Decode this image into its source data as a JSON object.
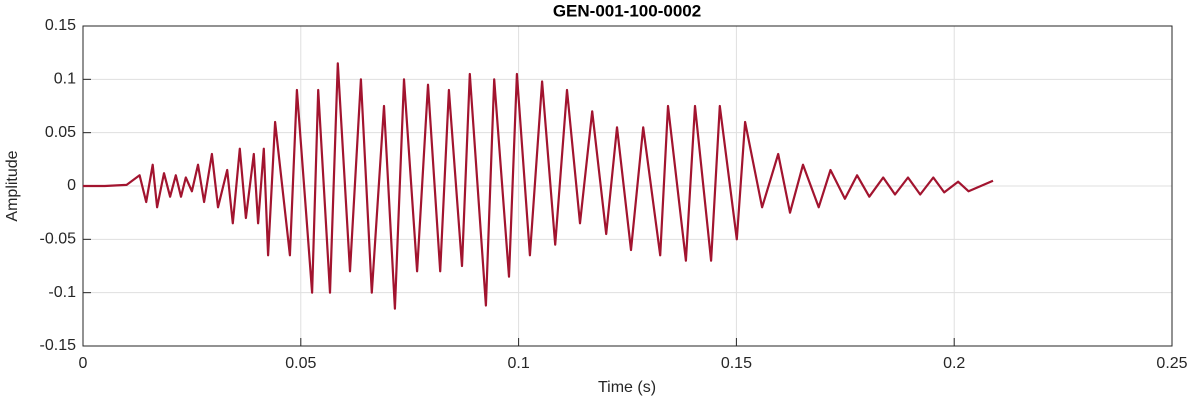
{
  "chart_data": {
    "type": "line",
    "title": "GEN-001-100-0002",
    "x_label": "Time (s)",
    "y_label": "Amplitude",
    "xlim": [
      0,
      0.25
    ],
    "xticks": [
      0,
      0.05,
      0.1,
      0.15,
      0.2,
      0.25
    ],
    "ylim": [
      -0.15,
      0.15
    ],
    "yticks": [
      -0.15,
      -0.1,
      -0.05,
      0,
      0.05,
      0.1,
      0.15
    ],
    "grid": true,
    "series": [
      {
        "color": "#a2142f",
        "x": [
          0,
          0.005,
          0.01,
          0.013,
          0.0145,
          0.016,
          0.017,
          0.0186,
          0.02,
          0.0213,
          0.0225,
          0.0236,
          0.025,
          0.0264,
          0.0278,
          0.0296,
          0.031,
          0.0331,
          0.0344,
          0.036,
          0.0374,
          0.0392,
          0.0402,
          0.0415,
          0.0425,
          0.0441,
          0.0475,
          0.0491,
          0.0526,
          0.054,
          0.0567,
          0.0585,
          0.0613,
          0.0638,
          0.0663,
          0.0691,
          0.0716,
          0.0737,
          0.0767,
          0.0792,
          0.082,
          0.084,
          0.087,
          0.0888,
          0.0925,
          0.0944,
          0.0978,
          0.0996,
          0.1026,
          0.1054,
          0.1084,
          0.1111,
          0.1141,
          0.1169,
          0.1201,
          0.1226,
          0.1258,
          0.1286,
          0.1325,
          0.1343,
          0.1384,
          0.1405,
          0.1442,
          0.1462,
          0.1501,
          0.152,
          0.1559,
          0.1596,
          0.1623,
          0.1653,
          0.1689,
          0.1716,
          0.1749,
          0.1777,
          0.1805,
          0.1837,
          0.1864,
          0.1894,
          0.1922,
          0.1952,
          0.1977,
          0.2009,
          0.2033,
          0.2089
        ],
        "values": [
          0,
          0,
          0.001,
          0.01,
          -0.015,
          0.02,
          -0.02,
          0.012,
          -0.01,
          0.01,
          -0.01,
          0.008,
          -0.005,
          0.02,
          -0.015,
          0.03,
          -0.02,
          0.015,
          -0.035,
          0.035,
          -0.03,
          0.03,
          -0.035,
          0.035,
          -0.065,
          0.06,
          -0.065,
          0.09,
          -0.1,
          0.09,
          -0.1,
          0.115,
          -0.08,
          0.1,
          -0.1,
          0.075,
          -0.115,
          0.1,
          -0.08,
          0.095,
          -0.08,
          0.09,
          -0.075,
          0.105,
          -0.112,
          0.1,
          -0.085,
          0.105,
          -0.065,
          0.098,
          -0.055,
          0.09,
          -0.035,
          0.07,
          -0.045,
          0.055,
          -0.06,
          0.055,
          -0.065,
          0.075,
          -0.07,
          0.075,
          -0.07,
          0.075,
          -0.05,
          0.06,
          -0.02,
          0.03,
          -0.025,
          0.02,
          -0.02,
          0.015,
          -0.012,
          0.01,
          -0.01,
          0.008,
          -0.008,
          0.008,
          -0.008,
          0.008,
          -0.006,
          0.004,
          -0.005,
          0.005
        ]
      }
    ]
  }
}
